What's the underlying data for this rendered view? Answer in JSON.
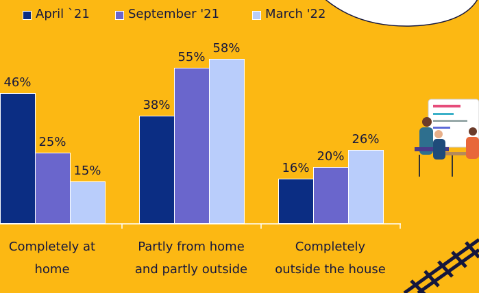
{
  "chart_data": {
    "type": "bar",
    "categories": [
      "Completely at\nhome",
      "Partly from home\nand partly outside",
      "Completely\noutside the house"
    ],
    "series": [
      {
        "name": "April `21",
        "color": "#0b2d83",
        "values": [
          46,
          38,
          16
        ],
        "value_labels": [
          "46%",
          "38%",
          "16%"
        ]
      },
      {
        "name": "September '21",
        "color": "#6a66cc",
        "values": [
          25,
          55,
          20
        ],
        "value_labels": [
          "25%",
          "55%",
          "20%"
        ]
      },
      {
        "name": "March '22",
        "color": "#b9cdfb",
        "values": [
          15,
          58,
          26
        ],
        "value_labels": [
          "15%",
          "58%",
          "26%"
        ]
      }
    ]
  }
}
